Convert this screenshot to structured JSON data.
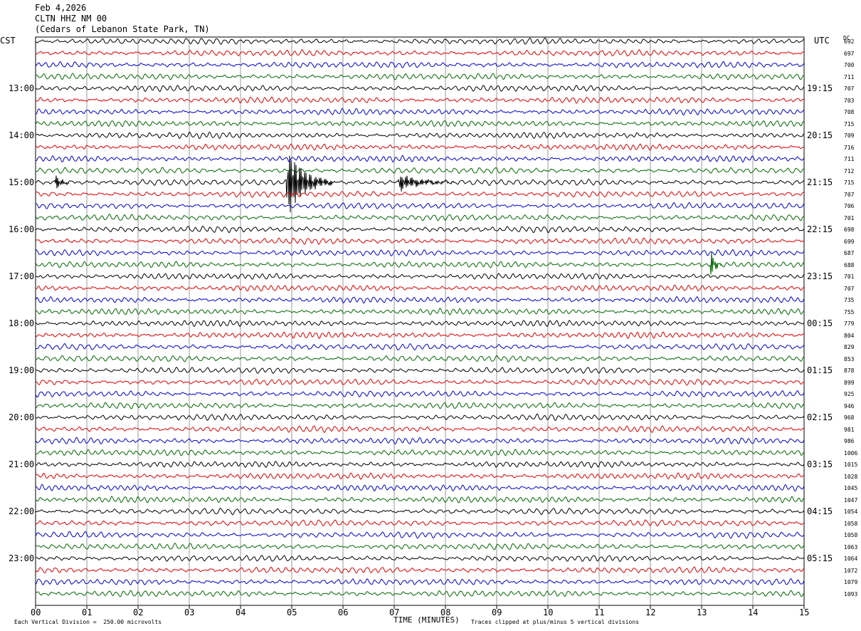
{
  "header": {
    "date": "Feb 4,2026",
    "station": "CLTN HHZ NM 00",
    "location": "(Cedars of Lebanon State Park, TN)"
  },
  "left_axis_label": "CST",
  "right_axis_label": "UTC",
  "dc_label": "DC",
  "x_axis_title": "TIME (MINUTES)",
  "footer": {
    "scale_text": "Each Vertical Division =  250.00 microvolts",
    "clip_text": "Traces clipped at plus/minus 5 vertical divisions"
  },
  "colors": {
    "black": "#000000",
    "red": "#dd0000",
    "blue": "#0000cc",
    "green": "#006600",
    "grid": "#808080"
  },
  "chart_data": {
    "type": "line",
    "title": "",
    "xlabel": "TIME (MINUTES)",
    "ylabel": "",
    "xlim": [
      0,
      15
    ],
    "x_ticks": [
      "00",
      "01",
      "02",
      "03",
      "04",
      "05",
      "06",
      "07",
      "08",
      "09",
      "10",
      "11",
      "12",
      "13",
      "14",
      "15"
    ],
    "trace_interval_minutes": 15,
    "trace_colors_cycle": [
      "black",
      "red",
      "blue",
      "green"
    ],
    "left_time_labels": [
      "13:00",
      "14:00",
      "15:00",
      "16:00",
      "17:00",
      "18:00",
      "19:00",
      "20:00",
      "21:00",
      "22:00",
      "23:00"
    ],
    "right_time_labels": [
      "19:15",
      "20:15",
      "21:15",
      "22:15",
      "23:15",
      "00:15",
      "01:15",
      "02:15",
      "03:15",
      "04:15",
      "05:15"
    ],
    "dc_offsets": [
      692,
      697,
      700,
      711,
      707,
      703,
      708,
      715,
      709,
      716,
      711,
      712,
      715,
      707,
      706,
      701,
      698,
      699,
      687,
      688,
      701,
      707,
      735,
      755,
      779,
      804,
      829,
      853,
      878,
      899,
      925,
      946,
      968,
      981,
      986,
      1006,
      1015,
      1028,
      1045,
      1047,
      1054,
      1058,
      1058,
      1063,
      1064,
      1072,
      1079,
      1093
    ],
    "events": [
      {
        "trace": 12,
        "minute": 0.4,
        "amplitude": 1.1,
        "duration": 0.3
      },
      {
        "trace": 12,
        "minute": 4.93,
        "amplitude": 5,
        "duration": 0.9
      },
      {
        "trace": 12,
        "minute": 7.1,
        "amplitude": 1.3,
        "duration": 1.1
      },
      {
        "trace": 19,
        "minute": 13.2,
        "amplitude": 1.8,
        "duration": 0.2
      }
    ],
    "scale_microvolts_per_division": 250.0,
    "clip_divisions": 5
  }
}
